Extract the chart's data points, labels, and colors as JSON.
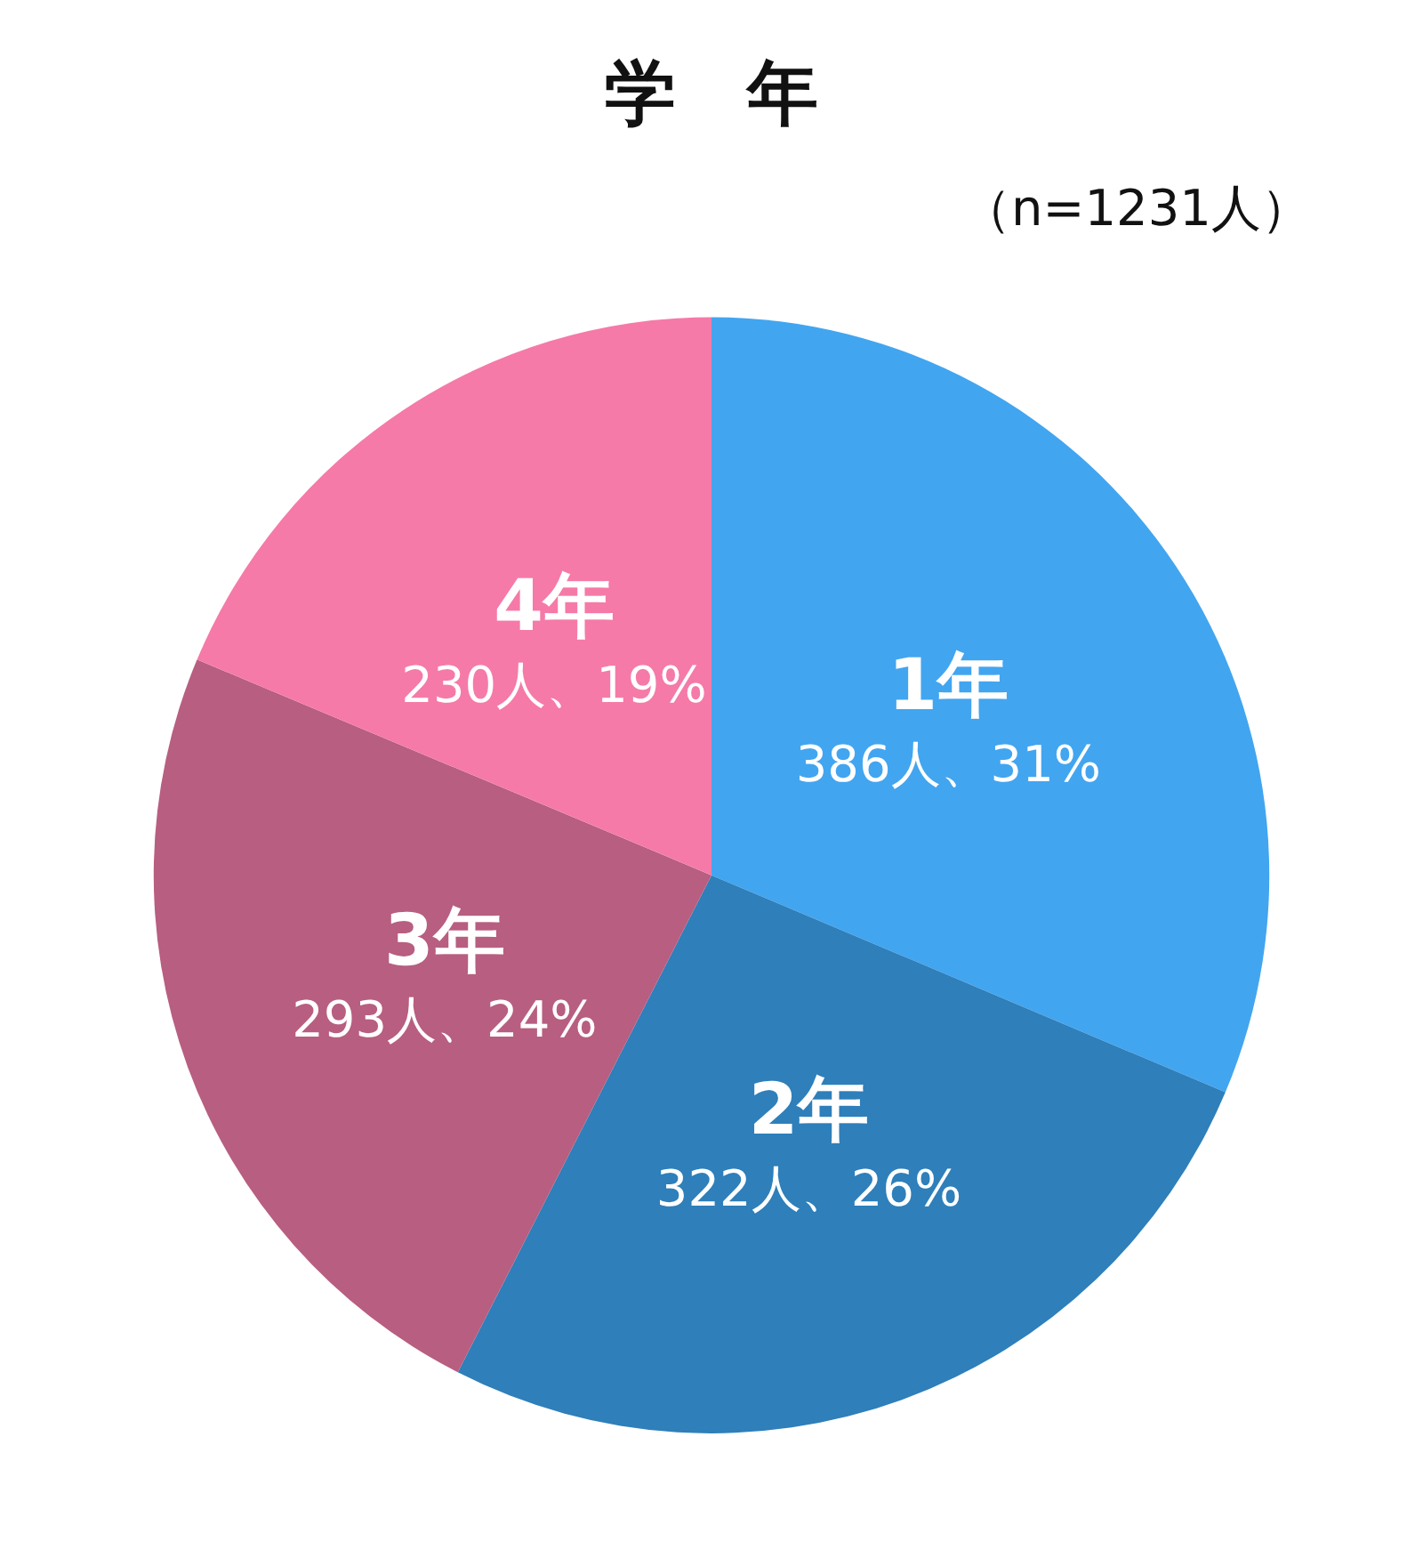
{
  "chart_data": {
    "type": "pie",
    "title": "学　年",
    "subtitle": "（n=1231人）",
    "categories": [
      "1年",
      "2年",
      "3年",
      "4年"
    ],
    "values": [
      386,
      322,
      293,
      230
    ],
    "colors": [
      "#42a5f0",
      "#2e7fba",
      "#b85e80",
      "#f57aa8"
    ],
    "value_labels": [
      "386人、31%",
      "322人、26%",
      "293人、24%",
      "230人、19%"
    ]
  }
}
